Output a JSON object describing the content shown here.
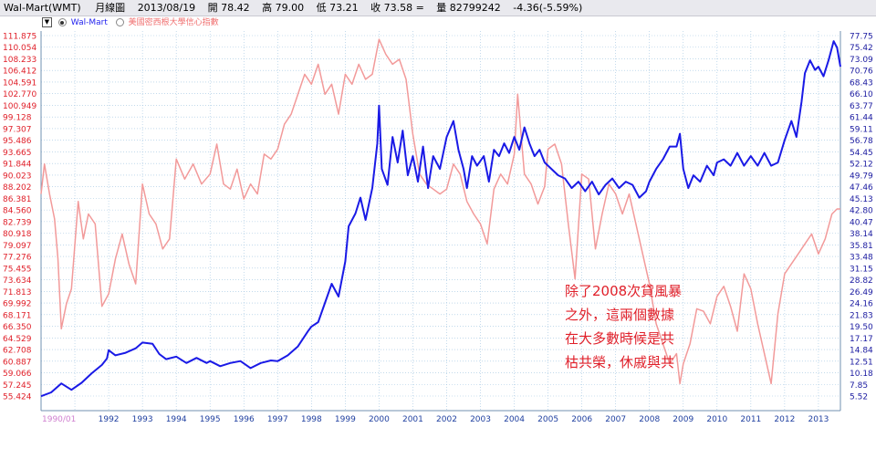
{
  "header": {
    "title": "Wal-Mart(WMT)",
    "period": "月線圖",
    "date": "2013/08/19",
    "open": "開 78.42",
    "high": "高 79.00",
    "low": "低 73.21",
    "close": "收 73.58 =",
    "volume": "量 82799242",
    "change": "-4.36(-5.59%)"
  },
  "legend": {
    "menu_glyph": "▼",
    "series1": "Wal-Mart",
    "series2": "美國密西根大學信心指數"
  },
  "annotation": {
    "lines": [
      "除了2008次貸風暴",
      "之外，這兩個數據",
      "在大多數時候是共",
      "枯共榮，休戚與共"
    ]
  },
  "colors": {
    "walmart": "#1a1ae6",
    "sentiment": "#f29a9a",
    "grid": "#9ec3e0",
    "left_axis_text": "#e0202a",
    "right_axis_text": "#1a1aa0",
    "x_axis_text": "#2040a0",
    "first_x_label": "#d080d0",
    "annotation": "#e0202a"
  },
  "chart_data": {
    "type": "line",
    "x_labels": [
      "1990/01",
      "1992",
      "1993",
      "1994",
      "1995",
      "1996",
      "1997",
      "1998",
      "1999",
      "2000",
      "2001",
      "2002",
      "2003",
      "2004",
      "2005",
      "2006",
      "2007",
      "2008",
      "2009",
      "2010",
      "2011",
      "2012",
      "2013"
    ],
    "x_range": [
      1990.0,
      2013.65
    ],
    "left_axis_ticks": [
      "111.875",
      "110.054",
      "108.233",
      "106.412",
      "104.591",
      "102.770",
      "100.949",
      "99.128",
      "97.307",
      "95.486",
      "93.665",
      "91.844",
      "90.023",
      "88.202",
      "86.381",
      "84.560",
      "82.739",
      "80.918",
      "79.097",
      "77.276",
      "75.455",
      "73.634",
      "71.813",
      "69.992",
      "68.171",
      "66.350",
      "64.529",
      "62.708",
      "60.887",
      "59.066",
      "57.245",
      "55.424"
    ],
    "right_axis_ticks": [
      "77.75",
      "75.42",
      "73.09",
      "70.76",
      "68.43",
      "66.10",
      "63.77",
      "61.44",
      "59.11",
      "56.78",
      "54.45",
      "52.12",
      "49.79",
      "47.46",
      "45.13",
      "42.80",
      "40.47",
      "38.14",
      "35.81",
      "33.48",
      "31.15",
      "28.82",
      "26.49",
      "24.16",
      "21.83",
      "19.50",
      "17.17",
      "14.84",
      "12.51",
      "10.18",
      "7.85",
      "5.52"
    ],
    "left_range": [
      55.424,
      111.875
    ],
    "right_range": [
      5.52,
      77.75
    ],
    "series": [
      {
        "name": "Wal-Mart",
        "axis": "left",
        "points": [
          [
            1990.0,
            55.4
          ],
          [
            1990.3,
            56.0
          ],
          [
            1990.6,
            57.4
          ],
          [
            1990.9,
            56.4
          ],
          [
            1991.2,
            57.5
          ],
          [
            1991.5,
            59.0
          ],
          [
            1991.8,
            60.3
          ],
          [
            1991.95,
            61.3
          ],
          [
            1992.0,
            62.6
          ],
          [
            1992.2,
            61.8
          ],
          [
            1992.5,
            62.2
          ],
          [
            1992.8,
            62.9
          ],
          [
            1993.0,
            63.8
          ],
          [
            1993.3,
            63.6
          ],
          [
            1993.5,
            62.0
          ],
          [
            1993.7,
            61.2
          ],
          [
            1994.0,
            61.6
          ],
          [
            1994.3,
            60.6
          ],
          [
            1994.6,
            61.4
          ],
          [
            1994.9,
            60.6
          ],
          [
            1995.0,
            60.9
          ],
          [
            1995.3,
            60.1
          ],
          [
            1995.6,
            60.6
          ],
          [
            1995.9,
            60.9
          ],
          [
            1996.2,
            59.8
          ],
          [
            1996.5,
            60.6
          ],
          [
            1996.8,
            61.0
          ],
          [
            1997.0,
            60.9
          ],
          [
            1997.3,
            61.8
          ],
          [
            1997.6,
            63.2
          ],
          [
            1997.9,
            65.6
          ],
          [
            1998.0,
            66.3
          ],
          [
            1998.2,
            67.0
          ],
          [
            1998.4,
            70.0
          ],
          [
            1998.6,
            73.0
          ],
          [
            1998.8,
            71.0
          ],
          [
            1999.0,
            76.5
          ],
          [
            1999.1,
            82.0
          ],
          [
            1999.3,
            84.0
          ],
          [
            1999.45,
            86.5
          ],
          [
            1999.6,
            83.0
          ],
          [
            1999.8,
            88.0
          ],
          [
            1999.95,
            95.0
          ],
          [
            2000.0,
            100.9
          ],
          [
            2000.08,
            91.0
          ],
          [
            2000.25,
            88.5
          ],
          [
            2000.4,
            96.0
          ],
          [
            2000.55,
            92.0
          ],
          [
            2000.7,
            97.0
          ],
          [
            2000.85,
            90.0
          ],
          [
            2001.0,
            93.0
          ],
          [
            2001.15,
            89.0
          ],
          [
            2001.3,
            94.5
          ],
          [
            2001.45,
            88.0
          ],
          [
            2001.6,
            93.0
          ],
          [
            2001.8,
            91.0
          ],
          [
            2002.0,
            96.0
          ],
          [
            2002.2,
            98.5
          ],
          [
            2002.35,
            94.0
          ],
          [
            2002.5,
            91.0
          ],
          [
            2002.6,
            88.0
          ],
          [
            2002.75,
            93.0
          ],
          [
            2002.9,
            91.5
          ],
          [
            2003.1,
            93.0
          ],
          [
            2003.25,
            89.0
          ],
          [
            2003.4,
            94.0
          ],
          [
            2003.55,
            93.0
          ],
          [
            2003.7,
            95.0
          ],
          [
            2003.85,
            93.5
          ],
          [
            2004.0,
            96.0
          ],
          [
            2004.15,
            94.0
          ],
          [
            2004.3,
            97.5
          ],
          [
            2004.45,
            95.0
          ],
          [
            2004.6,
            93.0
          ],
          [
            2004.75,
            94.0
          ],
          [
            2004.9,
            92.0
          ],
          [
            2005.1,
            91.0
          ],
          [
            2005.3,
            90.0
          ],
          [
            2005.5,
            89.5
          ],
          [
            2005.7,
            88.0
          ],
          [
            2005.9,
            89.0
          ],
          [
            2006.1,
            87.5
          ],
          [
            2006.3,
            89.0
          ],
          [
            2006.5,
            87.0
          ],
          [
            2006.7,
            88.5
          ],
          [
            2006.9,
            89.5
          ],
          [
            2007.1,
            88.0
          ],
          [
            2007.3,
            89.0
          ],
          [
            2007.5,
            88.5
          ],
          [
            2007.7,
            86.5
          ],
          [
            2007.9,
            87.5
          ],
          [
            2008.0,
            89.0
          ],
          [
            2008.2,
            91.0
          ],
          [
            2008.4,
            92.5
          ],
          [
            2008.6,
            94.5
          ],
          [
            2008.8,
            94.5
          ],
          [
            2008.9,
            96.5
          ],
          [
            2009.0,
            91.0
          ],
          [
            2009.15,
            88.0
          ],
          [
            2009.3,
            90.0
          ],
          [
            2009.5,
            89.0
          ],
          [
            2009.7,
            91.5
          ],
          [
            2009.9,
            90.0
          ],
          [
            2010.0,
            92.0
          ],
          [
            2010.2,
            92.5
          ],
          [
            2010.4,
            91.5
          ],
          [
            2010.6,
            93.5
          ],
          [
            2010.8,
            91.5
          ],
          [
            2011.0,
            93.0
          ],
          [
            2011.2,
            91.5
          ],
          [
            2011.4,
            93.5
          ],
          [
            2011.6,
            91.5
          ],
          [
            2011.8,
            92.0
          ],
          [
            2012.0,
            95.5
          ],
          [
            2012.2,
            98.5
          ],
          [
            2012.35,
            96.0
          ],
          [
            2012.5,
            101.5
          ],
          [
            2012.6,
            106.0
          ],
          [
            2012.75,
            108.0
          ],
          [
            2012.9,
            106.5
          ],
          [
            2013.0,
            107.0
          ],
          [
            2013.15,
            105.5
          ],
          [
            2013.3,
            108.0
          ],
          [
            2013.45,
            111.0
          ],
          [
            2013.55,
            110.0
          ],
          [
            2013.65,
            107.0
          ]
        ]
      },
      {
        "name": "美國密西根大學信心指數",
        "axis": "right",
        "points": [
          [
            1990.0,
            46.0
          ],
          [
            1990.1,
            52.0
          ],
          [
            1990.25,
            46.0
          ],
          [
            1990.4,
            41.0
          ],
          [
            1990.5,
            33.0
          ],
          [
            1990.6,
            19.0
          ],
          [
            1990.75,
            24.0
          ],
          [
            1990.9,
            27.0
          ],
          [
            1991.1,
            44.5
          ],
          [
            1991.25,
            37.0
          ],
          [
            1991.4,
            42.0
          ],
          [
            1991.6,
            40.0
          ],
          [
            1991.8,
            23.5
          ],
          [
            1992.0,
            26.0
          ],
          [
            1992.2,
            33.0
          ],
          [
            1992.4,
            38.0
          ],
          [
            1992.6,
            32.0
          ],
          [
            1992.8,
            28.0
          ],
          [
            1993.0,
            48.0
          ],
          [
            1993.2,
            42.0
          ],
          [
            1993.4,
            40.0
          ],
          [
            1993.6,
            35.0
          ],
          [
            1993.8,
            37.0
          ],
          [
            1994.0,
            53.0
          ],
          [
            1994.25,
            49.0
          ],
          [
            1994.5,
            52.0
          ],
          [
            1994.75,
            48.0
          ],
          [
            1995.0,
            50.0
          ],
          [
            1995.2,
            56.0
          ],
          [
            1995.4,
            48.0
          ],
          [
            1995.6,
            47.0
          ],
          [
            1995.8,
            51.0
          ],
          [
            1996.0,
            45.0
          ],
          [
            1996.2,
            48.0
          ],
          [
            1996.4,
            46.0
          ],
          [
            1996.6,
            54.0
          ],
          [
            1996.8,
            53.0
          ],
          [
            1997.0,
            55.0
          ],
          [
            1997.2,
            60.0
          ],
          [
            1997.4,
            62.0
          ],
          [
            1997.6,
            66.0
          ],
          [
            1997.8,
            70.0
          ],
          [
            1998.0,
            68.0
          ],
          [
            1998.2,
            72.0
          ],
          [
            1998.4,
            66.0
          ],
          [
            1998.6,
            68.0
          ],
          [
            1998.8,
            62.0
          ],
          [
            1999.0,
            70.0
          ],
          [
            1999.2,
            68.0
          ],
          [
            1999.4,
            72.0
          ],
          [
            1999.6,
            69.0
          ],
          [
            1999.8,
            70.0
          ],
          [
            2000.0,
            77.0
          ],
          [
            2000.2,
            74.0
          ],
          [
            2000.4,
            72.0
          ],
          [
            2000.6,
            73.0
          ],
          [
            2000.8,
            69.0
          ],
          [
            2001.0,
            58.0
          ],
          [
            2001.2,
            50.0
          ],
          [
            2001.4,
            48.0
          ],
          [
            2001.6,
            47.0
          ],
          [
            2001.8,
            46.0
          ],
          [
            2002.0,
            47.0
          ],
          [
            2002.2,
            52.0
          ],
          [
            2002.4,
            50.0
          ],
          [
            2002.6,
            44.5
          ],
          [
            2002.8,
            42.0
          ],
          [
            2003.0,
            40.0
          ],
          [
            2003.2,
            36.0
          ],
          [
            2003.4,
            47.0
          ],
          [
            2003.6,
            50.0
          ],
          [
            2003.8,
            48.0
          ],
          [
            2004.0,
            54.0
          ],
          [
            2004.1,
            66.0
          ],
          [
            2004.3,
            50.0
          ],
          [
            2004.5,
            48.0
          ],
          [
            2004.7,
            44.0
          ],
          [
            2004.9,
            47.5
          ],
          [
            2005.0,
            55.0
          ],
          [
            2005.2,
            56.0
          ],
          [
            2005.4,
            52.0
          ],
          [
            2005.6,
            40.0
          ],
          [
            2005.8,
            29.0
          ],
          [
            2006.0,
            50.0
          ],
          [
            2006.2,
            49.0
          ],
          [
            2006.4,
            35.0
          ],
          [
            2006.6,
            42.0
          ],
          [
            2006.8,
            48.0
          ],
          [
            2007.0,
            46.0
          ],
          [
            2007.2,
            42.0
          ],
          [
            2007.4,
            46.0
          ],
          [
            2007.6,
            40.0
          ],
          [
            2007.8,
            34.0
          ],
          [
            2008.0,
            28.0
          ],
          [
            2008.2,
            20.0
          ],
          [
            2008.4,
            16.0
          ],
          [
            2008.6,
            12.0
          ],
          [
            2008.8,
            14.0
          ],
          [
            2008.9,
            8.0
          ],
          [
            2009.0,
            12.0
          ],
          [
            2009.2,
            16.0
          ],
          [
            2009.4,
            23.0
          ],
          [
            2009.6,
            22.5
          ],
          [
            2009.8,
            20.0
          ],
          [
            2010.0,
            25.5
          ],
          [
            2010.2,
            27.5
          ],
          [
            2010.4,
            23.5
          ],
          [
            2010.6,
            18.5
          ],
          [
            2010.8,
            30.0
          ],
          [
            2011.0,
            27.0
          ],
          [
            2011.2,
            20.0
          ],
          [
            2011.4,
            14.0
          ],
          [
            2011.6,
            8.0
          ],
          [
            2011.8,
            22.0
          ],
          [
            2012.0,
            30.0
          ],
          [
            2012.2,
            32.0
          ],
          [
            2012.4,
            34.0
          ],
          [
            2012.6,
            36.0
          ],
          [
            2012.8,
            38.0
          ],
          [
            2013.0,
            34.0
          ],
          [
            2013.2,
            37.0
          ],
          [
            2013.4,
            42.0
          ],
          [
            2013.55,
            43.0
          ],
          [
            2013.65,
            43.0
          ]
        ]
      }
    ]
  }
}
